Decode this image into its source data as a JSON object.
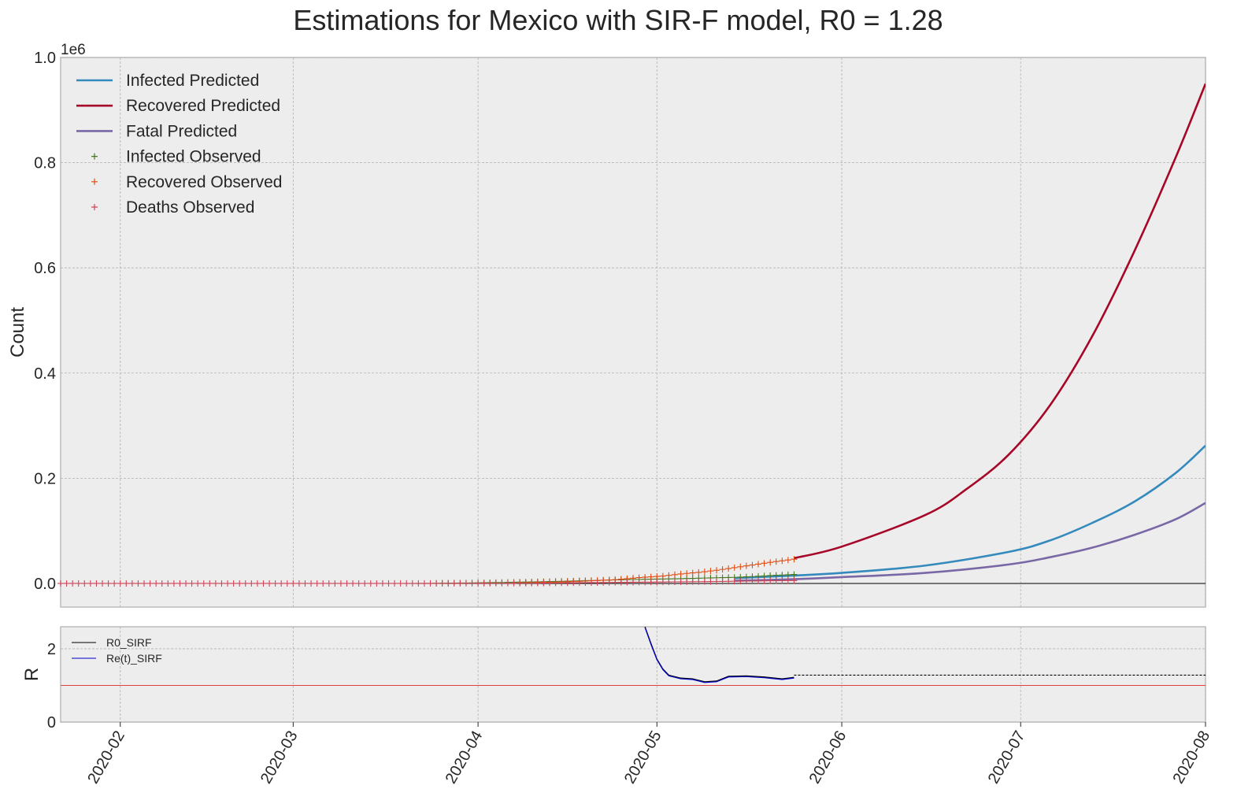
{
  "chart_data": [
    {
      "type": "line",
      "title": "Estimations for Mexico with SIR-F model, R0 = 1.28",
      "xlabel": "",
      "ylabel": "Count",
      "y_offset_label": "1e6",
      "xlim": [
        "2020-01-22",
        "2020-08-01"
      ],
      "ylim": [
        -45000,
        1000000
      ],
      "yticks": [
        0.0,
        0.2,
        0.4,
        0.6,
        0.8,
        1.0
      ],
      "ytick_labels": [
        "0.0",
        "0.2",
        "0.4",
        "0.6",
        "0.8",
        "1.0"
      ],
      "xticks": [
        "2020-02-01",
        "2020-03-01",
        "2020-04-01",
        "2020-05-01",
        "2020-06-01",
        "2020-07-01",
        "2020-08-01"
      ],
      "xtick_labels": [
        "2020-02",
        "2020-03",
        "2020-04",
        "2020-05",
        "2020-06",
        "2020-07",
        "2020-08"
      ],
      "grid": true,
      "legend_position": "top-left",
      "colors": {
        "infected_predicted": "#348abd",
        "recovered_predicted": "#a60628",
        "fatal_predicted": "#7a68a6",
        "infected_observed": "#467821",
        "recovered_observed": "#e24a0e",
        "deaths_observed": "#cf4457",
        "background": "#ededed"
      },
      "series": [
        {
          "name": "Infected Predicted",
          "kind": "line",
          "x": [
            "2020-05-14",
            "2020-05-24",
            "2020-06-01",
            "2020-06-15",
            "2020-06-29",
            "2020-07-06",
            "2020-07-13",
            "2020-07-20",
            "2020-07-27",
            "2020-08-01"
          ],
          "y": [
            10000,
            15000,
            20000,
            34000,
            60000,
            82000,
            115000,
            155000,
            210000,
            262000
          ]
        },
        {
          "name": "Recovered Predicted",
          "kind": "line",
          "x": [
            "2020-05-24",
            "2020-06-01",
            "2020-06-15",
            "2020-06-22",
            "2020-06-29",
            "2020-07-06",
            "2020-07-13",
            "2020-07-20",
            "2020-07-27",
            "2020-08-01"
          ],
          "y": [
            48000,
            70000,
            130000,
            180000,
            245000,
            340000,
            470000,
            630000,
            810000,
            950000
          ]
        },
        {
          "name": "Fatal Predicted",
          "kind": "line",
          "x": [
            "2020-05-14",
            "2020-05-24",
            "2020-06-01",
            "2020-06-15",
            "2020-06-29",
            "2020-07-06",
            "2020-07-13",
            "2020-07-20",
            "2020-07-27",
            "2020-08-01"
          ],
          "y": [
            5000,
            8000,
            12000,
            20000,
            36000,
            50000,
            68000,
            92000,
            122000,
            153000
          ]
        },
        {
          "name": "Infected Observed",
          "kind": "scatter",
          "x": [
            "2020-03-25",
            "2020-03-30",
            "2020-04-05",
            "2020-04-10",
            "2020-04-15",
            "2020-04-20",
            "2020-04-25",
            "2020-04-30",
            "2020-05-05",
            "2020-05-10",
            "2020-05-14",
            "2020-05-17",
            "2020-05-20",
            "2020-05-24"
          ],
          "y": [
            300,
            800,
            1800,
            2800,
            4000,
            5500,
            7000,
            8000,
            9000,
            10500,
            11500,
            13000,
            15000,
            17000
          ]
        },
        {
          "name": "Recovered Observed",
          "kind": "scatter",
          "x": [
            "2020-04-08",
            "2020-04-12",
            "2020-04-16",
            "2020-04-20",
            "2020-04-24",
            "2020-04-28",
            "2020-05-02",
            "2020-05-05",
            "2020-05-08",
            "2020-05-11",
            "2020-05-14",
            "2020-05-17",
            "2020-05-20",
            "2020-05-24"
          ],
          "y": [
            1000,
            2000,
            3000,
            5000,
            7000,
            11000,
            14000,
            18000,
            21000,
            25000,
            30000,
            35000,
            40000,
            46000
          ]
        },
        {
          "name": "Deaths Observed",
          "kind": "scatter",
          "x": [
            "2020-01-22",
            "2020-02-15",
            "2020-03-15",
            "2020-04-10",
            "2020-04-20",
            "2020-04-30",
            "2020-05-10",
            "2020-05-20",
            "2020-05-24"
          ],
          "y": [
            0,
            0,
            0,
            500,
            1500,
            2500,
            3500,
            5000,
            5500
          ]
        }
      ]
    },
    {
      "type": "line",
      "title": "",
      "xlabel": "",
      "ylabel": "R",
      "ylim": [
        0,
        2.6
      ],
      "yticks": [
        0,
        2
      ],
      "ytick_labels": [
        "0",
        "2"
      ],
      "grid": true,
      "legend_position": "top-left",
      "colors": {
        "r0": "#000000",
        "re": "#0000cc",
        "threshold": "#e04040"
      },
      "reference_line": 1.0,
      "series": [
        {
          "name": "R0_SIRF",
          "x": [
            "2020-04-29",
            "2020-04-30",
            "2020-05-01",
            "2020-05-02",
            "2020-05-03",
            "2020-05-05",
            "2020-05-07",
            "2020-05-09",
            "2020-05-11",
            "2020-05-13",
            "2020-05-16",
            "2020-05-19",
            "2020-05-22",
            "2020-05-24"
          ],
          "y": [
            2.6,
            2.15,
            1.72,
            1.45,
            1.28,
            1.2,
            1.18,
            1.1,
            1.12,
            1.25,
            1.26,
            1.23,
            1.18,
            1.22
          ]
        },
        {
          "name": "Re(t)_SIRF",
          "x": [
            "2020-04-29",
            "2020-04-30",
            "2020-05-01",
            "2020-05-02",
            "2020-05-03",
            "2020-05-05",
            "2020-05-07",
            "2020-05-09",
            "2020-05-11",
            "2020-05-13",
            "2020-05-16",
            "2020-05-19",
            "2020-05-22",
            "2020-05-24"
          ],
          "y": [
            2.58,
            2.12,
            1.7,
            1.43,
            1.26,
            1.18,
            1.16,
            1.08,
            1.1,
            1.23,
            1.24,
            1.21,
            1.16,
            1.2
          ]
        },
        {
          "name": "R0_SIRF (projection)",
          "style": "dashed",
          "x": [
            "2020-05-24",
            "2020-08-01"
          ],
          "y": [
            1.28,
            1.28
          ]
        }
      ]
    }
  ]
}
